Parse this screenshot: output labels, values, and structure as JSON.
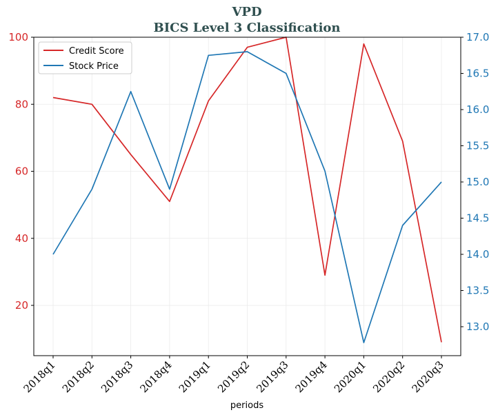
{
  "chart_data": {
    "type": "line",
    "title": "VPD",
    "subtitle": "BICS Level 3 Classification",
    "xlabel": "periods",
    "ylabel": "",
    "y2label": "",
    "categories": [
      "2018q1",
      "2018q2",
      "2018q3",
      "2018q4",
      "2019q1",
      "2019q2",
      "2019q3",
      "2019q4",
      "2020q1",
      "2020q2",
      "2020q3"
    ],
    "series": [
      {
        "name": "Credit Score",
        "axis": "left",
        "color": "#d62728",
        "values": [
          82,
          80,
          65,
          51,
          81,
          97,
          100,
          29,
          98,
          69,
          9
        ]
      },
      {
        "name": "Stock Price",
        "axis": "right",
        "color": "#1f77b4",
        "values": [
          14.0,
          14.9,
          16.25,
          14.9,
          16.75,
          16.8,
          16.5,
          15.15,
          12.78,
          14.4,
          15.0
        ]
      }
    ],
    "ylim": [
      5,
      100
    ],
    "y2lim": [
      12.6,
      17.0
    ],
    "yticks": [
      20,
      40,
      60,
      80,
      100
    ],
    "y2ticks": [
      13.0,
      13.5,
      14.0,
      14.5,
      15.0,
      15.5,
      16.0,
      16.5,
      17.0
    ],
    "y2tick_labels": [
      "13.0",
      "13.5",
      "14.0",
      "14.5",
      "15.0",
      "15.5",
      "16.0",
      "16.5",
      "17.0"
    ],
    "grid": true,
    "legend": "top-left",
    "colors": {
      "title": "#2f4f4f",
      "left_axis": "#d62728",
      "right_axis": "#1f77b4"
    }
  }
}
